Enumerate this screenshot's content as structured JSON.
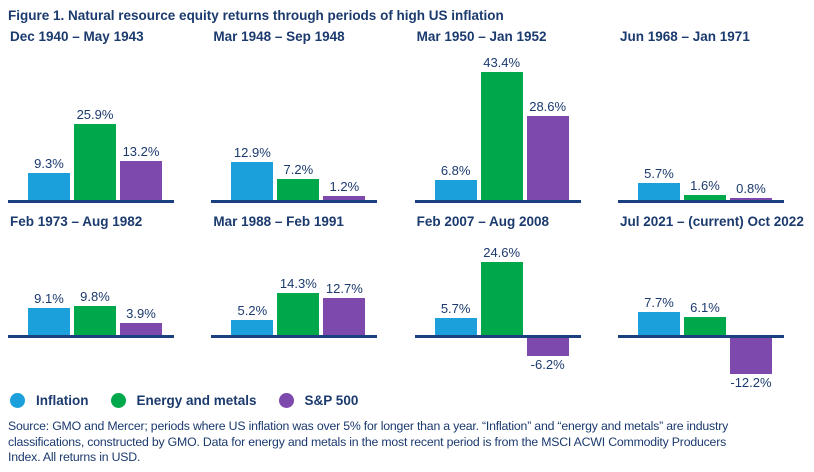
{
  "figure_title": "Figure 1. Natural resource equity returns through periods of high US inflation",
  "colors": {
    "navy_text": "#1B3A6E",
    "baseline": "#1B4080",
    "inflation": "#1BA0DC",
    "energy_metals": "#00A84C",
    "sp500": "#7E49AC"
  },
  "legend": [
    {
      "label": "Inflation",
      "color_key": "inflation"
    },
    {
      "label": "Energy and metals",
      "color_key": "energy_metals"
    },
    {
      "label": "S&P 500",
      "color_key": "sp500"
    }
  ],
  "chart_data": {
    "type": "bar",
    "unit": "%",
    "series_names": [
      "Inflation",
      "Energy and metals",
      "S&P 500"
    ],
    "series_keys": [
      "inflation",
      "energy_metals",
      "sp500"
    ],
    "ylim": [
      -15,
      45
    ],
    "grid": false,
    "legend_position": "bottom-left",
    "panels": [
      {
        "title": "Dec 1940 – May 1943",
        "values": [
          9.3,
          25.9,
          13.2
        ]
      },
      {
        "title": "Mar 1948 – Sep 1948",
        "values": [
          12.9,
          7.2,
          1.2
        ]
      },
      {
        "title": "Mar 1950 – Jan 1952",
        "values": [
          6.8,
          43.4,
          28.6
        ]
      },
      {
        "title": "Jun 1968 – Jan 1971",
        "values": [
          5.7,
          1.6,
          0.8
        ]
      },
      {
        "title": "Feb 1973 – Aug 1982",
        "values": [
          9.1,
          9.8,
          3.9
        ]
      },
      {
        "title": "Mar 1988 – Feb 1991",
        "values": [
          5.2,
          14.3,
          12.7
        ]
      },
      {
        "title": "Feb 2007 – Aug 2008",
        "values": [
          5.7,
          24.6,
          -6.2
        ]
      },
      {
        "title": "Jul 2021 – (current) Oct 2022",
        "values": [
          7.7,
          6.1,
          -12.2
        ]
      }
    ]
  },
  "source_lines": [
    "Source: GMO and Mercer; periods where US inflation was over 5% for longer than a year. “Inflation” and “energy and metals” are industry",
    "classifications, constructed by GMO. Data for energy and metals in the most recent period is from the MSCI ACWI Commodity Producers",
    "Index. All returns in USD."
  ]
}
